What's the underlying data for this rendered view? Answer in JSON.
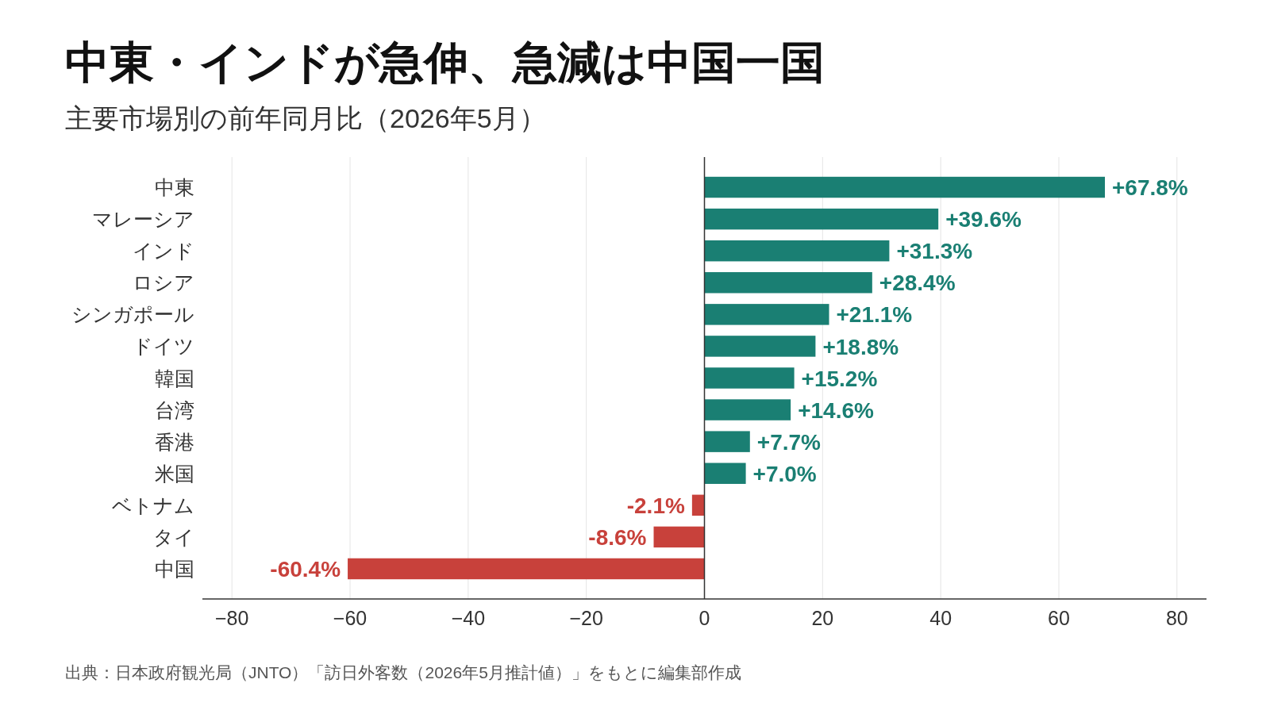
{
  "chart_data": {
    "type": "bar",
    "orientation": "horizontal",
    "title": "中東・インドが急伸、急減は中国一国",
    "subtitle": "主要市場別の前年同月比（2026年5月）",
    "categories": [
      "中東",
      "マレーシア",
      "インド",
      "ロシア",
      "シンガポール",
      "ドイツ",
      "韓国",
      "台湾",
      "香港",
      "米国",
      "ベトナム",
      "タイ",
      "中国"
    ],
    "values": [
      67.8,
      39.6,
      31.3,
      28.4,
      21.1,
      18.8,
      15.2,
      14.6,
      7.7,
      7.0,
      -2.1,
      -8.6,
      -60.4
    ],
    "colors": [
      "#1a7f73",
      "#1a7f73",
      "#1a7f73",
      "#1a7f73",
      "#1a7f73",
      "#1a7f73",
      "#1a7f73",
      "#1a7f73",
      "#1a7f73",
      "#1a7f73",
      "#c8413b",
      "#c8413b",
      "#c8413b"
    ],
    "value_labels": [
      "+67.8%",
      "+39.6%",
      "+31.3%",
      "+28.4%",
      "+21.1%",
      "+18.8%",
      "+15.2%",
      "+14.6%",
      "+7.7%",
      "+7.0%",
      "-2.1%",
      "-8.6%",
      "-60.4%"
    ],
    "xlim": [
      -85,
      85
    ],
    "xticks": [
      -80,
      -60,
      -40,
      -20,
      0,
      20,
      40,
      60,
      80
    ],
    "grid": "x",
    "annotations": [
      "出典：日本政府観光局（JNTO）「訪日外客数（2026年5月推計値）」をもとに編集部作成"
    ]
  }
}
